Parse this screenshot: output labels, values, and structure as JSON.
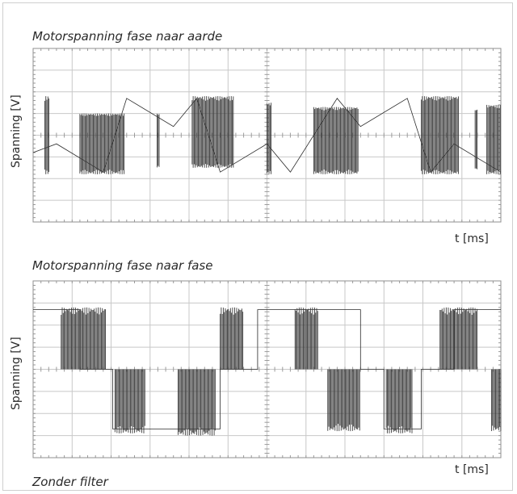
{
  "footer": {
    "caption": "Zonder filter"
  },
  "chart_data": [
    {
      "type": "line",
      "title": "Motorspanning fase naar aarde",
      "xlabel": "t [ms]",
      "ylabel": "Spanning [V]",
      "grid": true,
      "description_waveform": "triangular",
      "xlim": [
        0,
        10
      ],
      "ylim": [
        -4,
        4
      ],
      "series": [
        {
          "x": [
            0,
            0.5,
            1.5,
            2.0,
            3.0,
            3.5,
            4.0,
            5.0,
            5.5,
            6.5,
            7.0,
            8.0,
            8.5,
            9.0,
            10.0
          ],
          "values": [
            -0.8,
            -0.4,
            -1.7,
            1.7,
            0.4,
            1.7,
            -1.7,
            -0.4,
            -1.7,
            1.7,
            0.4,
            1.7,
            -1.7,
            -0.4,
            -1.7
          ]
        }
      ],
      "pulse_trains": [
        {
          "x": [
            0.25,
            0.35
          ],
          "low": -1.8,
          "high": 1.8
        },
        {
          "x": [
            1.0,
            1.95
          ],
          "low": -1.8,
          "high": 1.0
        },
        {
          "x": [
            2.65,
            2.7
          ],
          "low": -1.5,
          "high": 1.0
        },
        {
          "x": [
            3.4,
            4.3
          ],
          "low": -1.5,
          "high": 1.8
        },
        {
          "x": [
            5.0,
            5.1
          ],
          "low": -1.8,
          "high": 1.5
        },
        {
          "x": [
            6.0,
            6.95
          ],
          "low": -1.8,
          "high": 1.3
        },
        {
          "x": [
            8.3,
            9.1
          ],
          "low": -1.8,
          "high": 1.8
        },
        {
          "x": [
            9.45,
            9.5
          ],
          "low": -1.6,
          "high": 1.2
        },
        {
          "x": [
            9.7,
            10.0
          ],
          "low": -1.8,
          "high": 1.4
        }
      ]
    },
    {
      "type": "line",
      "title": "Motorspanning fase naar fase",
      "xlabel": "t [ms]",
      "ylabel": "Spanning [V]",
      "grid": true,
      "description_waveform": "stepped",
      "xlim": [
        0,
        10
      ],
      "ylim": [
        -4,
        4
      ],
      "levels": {
        "high": 2.7,
        "zero": 0,
        "low": -2.7
      },
      "segments": [
        {
          "x": [
            0,
            1.0
          ],
          "level": "high"
        },
        {
          "x": [
            1.0,
            1.7
          ],
          "level": "zero"
        },
        {
          "x": [
            1.7,
            4.0
          ],
          "level": "low"
        },
        {
          "x": [
            4.0,
            4.8
          ],
          "level": "zero"
        },
        {
          "x": [
            4.8,
            7.0
          ],
          "level": "high"
        },
        {
          "x": [
            7.0,
            7.5
          ],
          "level": "zero"
        },
        {
          "x": [
            7.5,
            8.3
          ],
          "level": "low"
        },
        {
          "x": [
            8.3,
            9.0
          ],
          "level": "zero"
        },
        {
          "x": [
            9.0,
            10.0
          ],
          "level": "high"
        }
      ],
      "pulse_trains": [
        {
          "x": [
            0.6,
            1.55
          ],
          "low": 0,
          "high": 2.8
        },
        {
          "x": [
            1.75,
            2.4
          ],
          "low": -2.9,
          "high": 0
        },
        {
          "x": [
            3.1,
            3.9
          ],
          "low": -3.0,
          "high": 0
        },
        {
          "x": [
            4.0,
            4.5
          ],
          "low": 0,
          "high": 2.8
        },
        {
          "x": [
            5.6,
            6.1
          ],
          "low": 0,
          "high": 2.8
        },
        {
          "x": [
            6.3,
            7.0
          ],
          "low": -2.8,
          "high": 0
        },
        {
          "x": [
            7.55,
            8.1
          ],
          "low": -2.9,
          "high": 0
        },
        {
          "x": [
            8.7,
            9.5
          ],
          "low": 0,
          "high": 2.8
        },
        {
          "x": [
            9.8,
            10.0
          ],
          "low": -2.8,
          "high": 0
        }
      ]
    }
  ]
}
